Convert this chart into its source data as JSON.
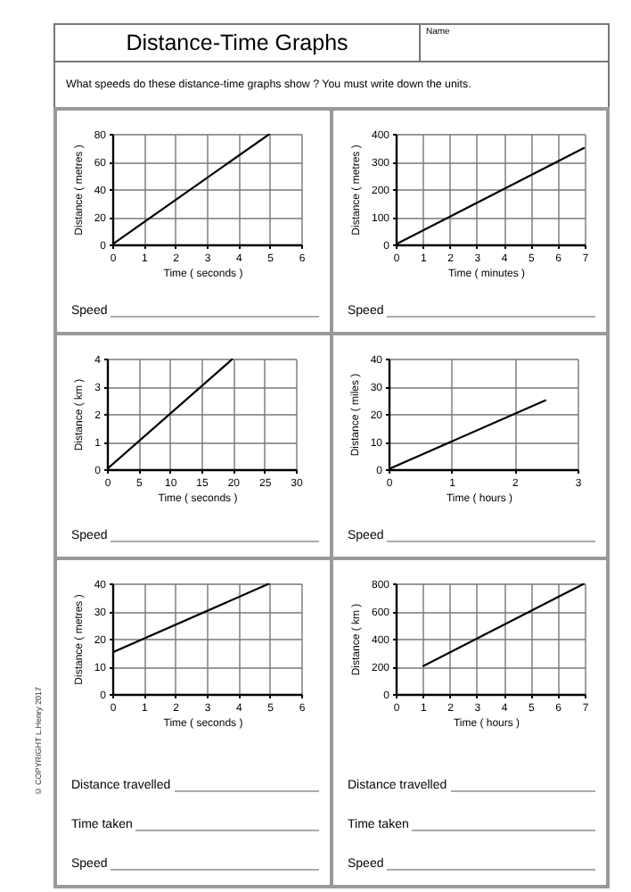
{
  "chart_data": [
    {
      "type": "other",
      "title": "Distance-Time Graphs",
      "annotations": [
        "Name",
        "What speeds do these distance-time graphs show ? You must write down the units.",
        "© COPYRIGHT L.Henry 2017"
      ]
    },
    {
      "type": "line",
      "xlabel": "Time ( seconds )",
      "ylabel": "Distance ( metres )",
      "x": [
        0,
        5
      ],
      "values": [
        0,
        80
      ],
      "color": "#000000",
      "xlim": [
        0,
        6
      ],
      "ylim": [
        0,
        80
      ],
      "xticks": [
        0,
        1,
        2,
        3,
        4,
        5,
        6
      ],
      "yticks": [
        0,
        20,
        40,
        60,
        80
      ],
      "grid": true,
      "annotations": [
        "Speed"
      ]
    },
    {
      "type": "line",
      "xlabel": "Time ( minutes )",
      "ylabel": "Distance ( metres )",
      "x": [
        0,
        7
      ],
      "values": [
        0,
        350
      ],
      "color": "#000000",
      "xlim": [
        0,
        7
      ],
      "ylim": [
        0,
        400
      ],
      "xticks": [
        0,
        1,
        2,
        3,
        4,
        5,
        6,
        7
      ],
      "yticks": [
        0,
        100,
        200,
        300,
        400
      ],
      "grid": true,
      "annotations": [
        "Speed"
      ]
    },
    {
      "type": "line",
      "xlabel": "Time ( seconds )",
      "ylabel": "Distance ( km )",
      "x": [
        0,
        20
      ],
      "values": [
        0,
        4
      ],
      "color": "#000000",
      "xlim": [
        0,
        30
      ],
      "ylim": [
        0,
        4
      ],
      "xticks": [
        0,
        5,
        10,
        15,
        20,
        25,
        30
      ],
      "yticks": [
        0,
        1,
        2,
        3,
        4
      ],
      "grid": true,
      "annotations": [
        "Speed"
      ]
    },
    {
      "type": "line",
      "xlabel": "Time ( hours )",
      "ylabel": "Distance ( miles )",
      "x": [
        0,
        2.5
      ],
      "values": [
        0,
        25
      ],
      "color": "#000000",
      "xlim": [
        0,
        3
      ],
      "ylim": [
        0,
        40
      ],
      "xticks": [
        0,
        1,
        2,
        3
      ],
      "yticks": [
        0,
        10,
        20,
        30,
        40
      ],
      "grid": true,
      "annotations": [
        "Speed"
      ]
    },
    {
      "type": "line",
      "xlabel": "Time ( seconds )",
      "ylabel": "Distance ( metres )",
      "x": [
        0,
        5
      ],
      "values": [
        15,
        40
      ],
      "color": "#000000",
      "xlim": [
        0,
        6
      ],
      "ylim": [
        0,
        40
      ],
      "xticks": [
        0,
        1,
        2,
        3,
        4,
        5,
        6
      ],
      "yticks": [
        0,
        10,
        20,
        30,
        40
      ],
      "grid": true,
      "annotations": [
        "Distance travelled",
        "Time taken",
        "Speed"
      ]
    },
    {
      "type": "line",
      "xlabel": "Time ( hours )",
      "ylabel": "Distance ( km )",
      "x": [
        1,
        7
      ],
      "values": [
        200,
        800
      ],
      "color": "#000000",
      "xlim": [
        0,
        7
      ],
      "ylim": [
        0,
        800
      ],
      "xticks": [
        0,
        1,
        2,
        3,
        4,
        5,
        6,
        7
      ],
      "yticks": [
        0,
        200,
        400,
        600,
        800
      ],
      "grid": true,
      "annotations": [
        "Distance travelled",
        "Time taken",
        "Speed"
      ]
    }
  ]
}
